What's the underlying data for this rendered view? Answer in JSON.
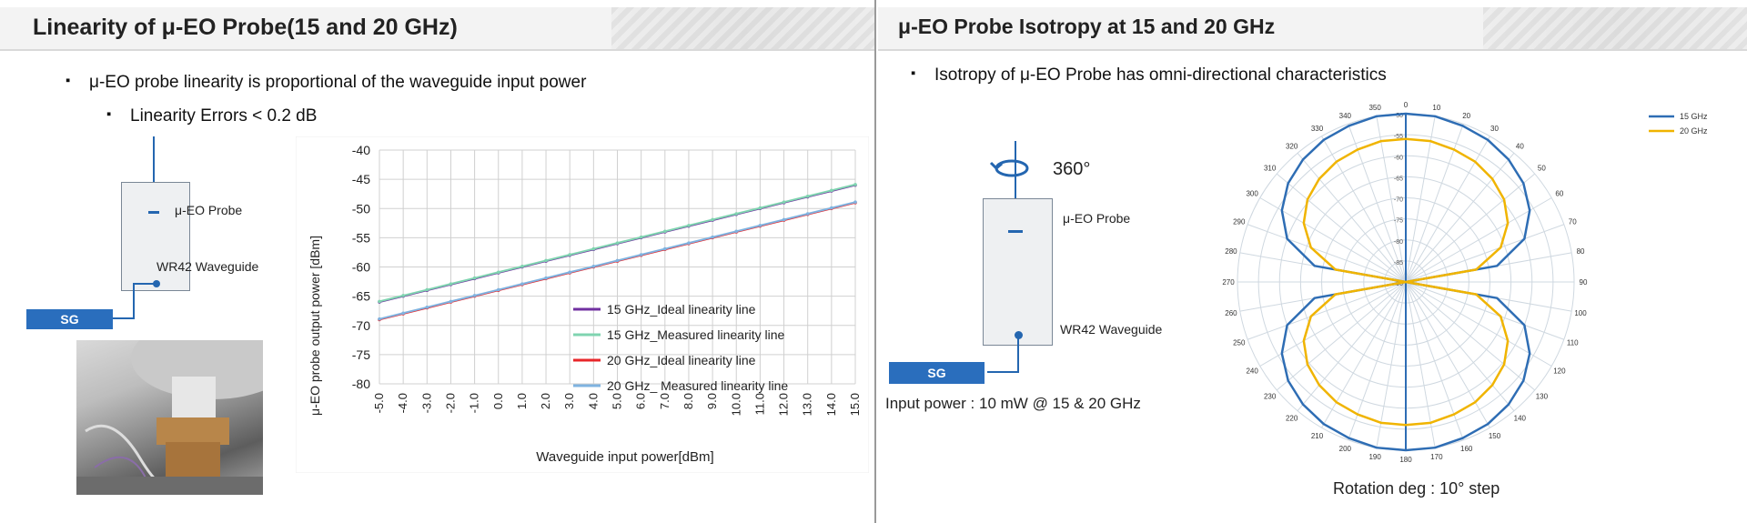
{
  "left": {
    "title": "Linearity of μ-EO Probe(15 and 20 GHz)",
    "bullet1": "μ-EO probe linearity is proportional of the waveguide input power",
    "bullet2": "Linearity Errors  < 0.2 dB",
    "diagram": {
      "probe_label": "μ-EO Probe",
      "waveguide_label": "WR42 Waveguide",
      "sg_label": "SG"
    }
  },
  "right": {
    "title": "μ-EO Probe Isotropy at 15 and 20 GHz",
    "bullet1": "Isotropy of μ-EO Probe has omni-directional characteristics",
    "rotation_label": "360°",
    "diagram": {
      "probe_label": "μ-EO Probe",
      "waveguide_label": "WR42 Waveguide",
      "sg_label": "SG"
    },
    "input_power": "Input power : 10 mW @ 15 & 20 GHz",
    "rotation_caption": "Rotation deg : 10° step"
  },
  "colors": {
    "purple": "#7030a0",
    "teal": "#7fd4b0",
    "red": "#e8262a",
    "lightblue": "#7fb3e0",
    "blue": "#2e6db4",
    "gold": "#f0b400"
  },
  "chart_data": [
    {
      "type": "line",
      "xlabel": "Waveguide input power[dBm]",
      "ylabel": "μ-EO probe output power [dBm]",
      "xlim": [
        -5,
        15
      ],
      "ylim": [
        -80,
        -40
      ],
      "x_ticks": [
        "-5.0",
        "-4.0",
        "-3.0",
        "-2.0",
        "-1.0",
        "0.0",
        "1.0",
        "2.0",
        "3.0",
        "4.0",
        "5.0",
        "6.0",
        "7.0",
        "8.0",
        "9.0",
        "10.0",
        "11.0",
        "12.0",
        "13.0",
        "14.0",
        "15.0"
      ],
      "y_ticks": [
        "-40",
        "-45",
        "-50",
        "-55",
        "-60",
        "-65",
        "-70",
        "-75",
        "-80"
      ],
      "legend_position": "bottom-right",
      "x": [
        -5,
        -4,
        -3,
        -2,
        -1,
        0,
        1,
        2,
        3,
        4,
        5,
        6,
        7,
        8,
        9,
        10,
        11,
        12,
        13,
        14,
        15
      ],
      "series": [
        {
          "name": "15 GHz_Ideal linearity line",
          "color": "#7030a0",
          "values": [
            -66.0,
            -65.0,
            -64.0,
            -63.0,
            -62.0,
            -61.0,
            -60.0,
            -59.0,
            -58.0,
            -57.0,
            -56.0,
            -55.0,
            -54.0,
            -53.0,
            -52.0,
            -51.0,
            -50.0,
            -49.0,
            -48.0,
            -47.0,
            -46.0
          ]
        },
        {
          "name": "15 GHz_Measured linearity line",
          "color": "#7fd4b0",
          "values": [
            -65.9,
            -64.9,
            -63.9,
            -62.9,
            -61.9,
            -60.9,
            -59.9,
            -58.9,
            -57.9,
            -56.9,
            -55.9,
            -54.9,
            -53.9,
            -52.9,
            -51.9,
            -50.9,
            -49.9,
            -48.9,
            -47.9,
            -46.9,
            -45.9
          ]
        },
        {
          "name": "20 GHz_Ideal linearity line",
          "color": "#e8262a",
          "values": [
            -69.0,
            -68.0,
            -67.0,
            -66.0,
            -65.0,
            -64.0,
            -63.0,
            -62.0,
            -61.0,
            -60.0,
            -59.0,
            -58.0,
            -57.0,
            -56.0,
            -55.0,
            -54.0,
            -53.0,
            -52.0,
            -51.0,
            -50.0,
            -49.0
          ]
        },
        {
          "name": "20 GHz_ Measured linearity line",
          "color": "#7fb3e0",
          "values": [
            -68.9,
            -67.9,
            -66.9,
            -65.9,
            -64.9,
            -63.9,
            -62.9,
            -61.9,
            -60.9,
            -59.9,
            -58.9,
            -57.9,
            -56.9,
            -55.9,
            -54.9,
            -53.9,
            -52.9,
            -51.9,
            -50.9,
            -49.9,
            -48.9
          ]
        }
      ]
    },
    {
      "type": "polar",
      "angle_labels": [
        "0",
        "10",
        "20",
        "30",
        "40",
        "50",
        "60",
        "70",
        "80",
        "90",
        "100",
        "110",
        "120",
        "130",
        "140",
        "150",
        "160",
        "170",
        "180",
        "190",
        "200",
        "210",
        "220",
        "230",
        "240",
        "250",
        "260",
        "270",
        "280",
        "290",
        "300",
        "310",
        "320",
        "330",
        "340",
        "350"
      ],
      "radial_ticks": [
        "-50",
        "-55",
        "-60",
        "-65",
        "-70",
        "-75",
        "-80",
        "-85",
        "-90"
      ],
      "rlim": [
        -90,
        -50
      ],
      "legend_position": "top-right",
      "series": [
        {
          "name": "15 GHz",
          "color": "#2e6db4",
          "values": [
            -50,
            -50,
            -50.5,
            -51,
            -52,
            -53.5,
            -56,
            -60,
            -68,
            -90,
            -68,
            -60,
            -56,
            -53.5,
            -52,
            -51,
            -50.5,
            -50,
            -50,
            -50,
            -50.5,
            -51,
            -52,
            -53.5,
            -56,
            -60,
            -68,
            -90,
            -68,
            -60,
            -56,
            -53.5,
            -52,
            -51,
            -50.5,
            -50
          ]
        },
        {
          "name": "20 GHz",
          "color": "#f0b400",
          "values": [
            -56,
            -56,
            -56.5,
            -57,
            -58,
            -59.5,
            -62,
            -66,
            -73,
            -90,
            -73,
            -66,
            -62,
            -59.5,
            -58,
            -57,
            -56.5,
            -56,
            -56,
            -56,
            -56.5,
            -57,
            -58,
            -59.5,
            -62,
            -66,
            -73,
            -90,
            -73,
            -66,
            -62,
            -59.5,
            -58,
            -57,
            -56.5,
            -56
          ]
        }
      ]
    }
  ]
}
